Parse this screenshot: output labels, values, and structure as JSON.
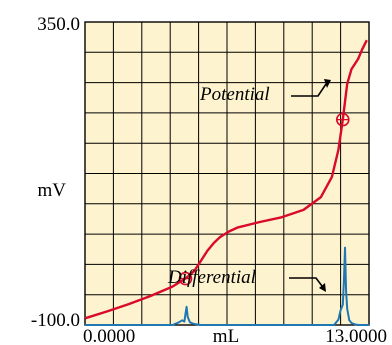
{
  "chart_data": {
    "type": "line",
    "title": "",
    "xlabel": "mL",
    "ylabel": "mV",
    "x_tick_labels": [
      "0.0000",
      "13.0000"
    ],
    "y_tick_labels": [
      "350.0",
      "-100.0"
    ],
    "xlim": [
      0,
      13
    ],
    "ylim": [
      -100,
      350
    ],
    "grid": true,
    "series": [
      {
        "name": "Potential",
        "color": "#d90a2a",
        "x": [
          0,
          1,
          2,
          3,
          4,
          4.6,
          5,
          5.3,
          5.6,
          5.9,
          6.2,
          6.6,
          7,
          8,
          9,
          10,
          10.8,
          11.3,
          11.6,
          11.8,
          12,
          12.2,
          12.5,
          12.7,
          12.9
        ],
        "y": [
          -90,
          -80,
          -69,
          -57,
          -43,
          -31,
          -20,
          -5,
          10,
          22,
          31,
          39,
          45,
          53,
          60,
          71,
          90,
          120,
          160,
          205,
          258,
          280,
          295,
          310,
          323
        ]
      },
      {
        "name": "Differential",
        "color": "#1f77b4",
        "x": [
          0,
          4.0,
          4.3,
          4.45,
          4.55,
          4.6,
          4.65,
          4.7,
          4.8,
          4.95,
          5.1,
          5.3,
          6,
          8,
          10,
          11.4,
          11.6,
          11.7,
          11.8,
          11.85,
          11.9,
          11.95,
          12.0,
          12.1,
          12.2,
          12.35,
          12.5,
          13
        ],
        "y": [
          -100,
          -100,
          -96,
          -93,
          -95,
          -83,
          -73,
          -88,
          -96,
          -98,
          -99,
          -100,
          -100,
          -100,
          -100,
          -100,
          -92,
          -78,
          -70,
          -35,
          15,
          -50,
          -76,
          -93,
          -97,
          -99,
          -100,
          -100
        ]
      }
    ],
    "markers": [
      {
        "x": 4.6,
        "y": -31,
        "series": "Potential"
      },
      {
        "x": 11.8,
        "y": 205,
        "series": "Potential"
      }
    ],
    "annotations": [
      {
        "text": "Potential",
        "target_series": "Potential"
      },
      {
        "text": "Differential",
        "target_series": "Differential"
      }
    ]
  }
}
